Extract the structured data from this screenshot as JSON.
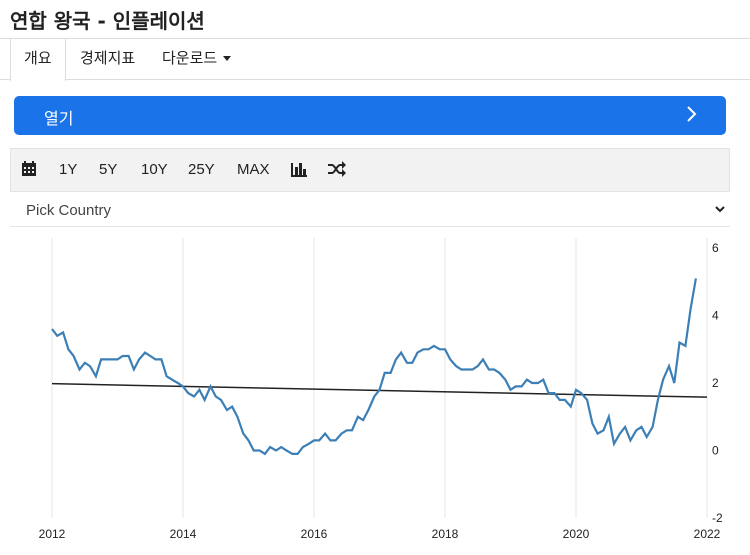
{
  "page": {
    "title": "연합 왕국 - 인플레이션"
  },
  "tabs": [
    {
      "label": "개요",
      "active": true
    },
    {
      "label": "경제지표",
      "active": false
    },
    {
      "label": "다운로드",
      "active": false,
      "dropdown": true
    }
  ],
  "open_button": {
    "label": "열기",
    "icon": "chevron-right-icon"
  },
  "toolbar": {
    "calendar_icon": "calendar-icon",
    "ranges": [
      "1Y",
      "5Y",
      "10Y",
      "25Y",
      "MAX"
    ],
    "bar_icon": "bar-chart-icon",
    "shuffle_icon": "shuffle-icon"
  },
  "country_select": {
    "value": "Pick Country",
    "icon": "chevron-down-icon"
  },
  "colors": {
    "accent": "#1a73e8",
    "series": "#3b7fb6",
    "trend": "#222222"
  },
  "chart_data": {
    "type": "line",
    "title": "",
    "xlabel": "",
    "ylabel": "",
    "xlim": [
      2012,
      2022
    ],
    "ylim": [
      -2,
      6
    ],
    "x_ticks": [
      "2012",
      "2014",
      "2016",
      "2018",
      "2020",
      "2022"
    ],
    "y_ticks": [
      "-2",
      "0",
      "2",
      "4",
      "6"
    ],
    "y_axis_side": "right",
    "grid": "vertical",
    "series": [
      {
        "x": [
          2012.0,
          2012.08,
          2012.17,
          2012.25,
          2012.33,
          2012.42,
          2012.5,
          2012.58,
          2012.67,
          2012.75,
          2012.83,
          2012.92,
          2013.0,
          2013.08,
          2013.17,
          2013.25,
          2013.33,
          2013.42,
          2013.5,
          2013.58,
          2013.67,
          2013.75,
          2013.83,
          2013.92,
          2014.0,
          2014.08,
          2014.17,
          2014.25,
          2014.33,
          2014.42,
          2014.5,
          2014.58,
          2014.67,
          2014.75,
          2014.83,
          2014.92,
          2015.0,
          2015.08,
          2015.17,
          2015.25,
          2015.33,
          2015.42,
          2015.5,
          2015.58,
          2015.67,
          2015.75,
          2015.83,
          2015.92,
          2016.0,
          2016.08,
          2016.17,
          2016.25,
          2016.33,
          2016.42,
          2016.5,
          2016.58,
          2016.67,
          2016.75,
          2016.83,
          2016.92,
          2017.0,
          2017.08,
          2017.17,
          2017.25,
          2017.33,
          2017.42,
          2017.5,
          2017.58,
          2017.67,
          2017.75,
          2017.83,
          2017.92,
          2018.0,
          2018.08,
          2018.17,
          2018.25,
          2018.33,
          2018.42,
          2018.5,
          2018.58,
          2018.67,
          2018.75,
          2018.83,
          2018.92,
          2019.0,
          2019.08,
          2019.17,
          2019.25,
          2019.33,
          2019.42,
          2019.5,
          2019.58,
          2019.67,
          2019.75,
          2019.83,
          2019.92,
          2020.0,
          2020.08,
          2020.17,
          2020.25,
          2020.33,
          2020.42,
          2020.5,
          2020.58,
          2020.67,
          2020.75,
          2020.83,
          2020.92,
          2021.0,
          2021.08,
          2021.17,
          2021.25,
          2021.33,
          2021.42,
          2021.5,
          2021.58,
          2021.67,
          2021.75,
          2021.83
        ],
        "values": [
          3.6,
          3.4,
          3.5,
          3.0,
          2.8,
          2.4,
          2.6,
          2.5,
          2.2,
          2.7,
          2.7,
          2.7,
          2.7,
          2.8,
          2.8,
          2.4,
          2.7,
          2.9,
          2.8,
          2.7,
          2.7,
          2.2,
          2.1,
          2.0,
          1.9,
          1.7,
          1.6,
          1.8,
          1.5,
          1.9,
          1.6,
          1.5,
          1.2,
          1.3,
          1.0,
          0.5,
          0.3,
          0.0,
          0.0,
          -0.1,
          0.1,
          0.0,
          0.1,
          0.0,
          -0.1,
          -0.1,
          0.1,
          0.2,
          0.3,
          0.3,
          0.5,
          0.3,
          0.3,
          0.5,
          0.6,
          0.6,
          1.0,
          0.9,
          1.2,
          1.6,
          1.8,
          2.3,
          2.3,
          2.7,
          2.9,
          2.6,
          2.6,
          2.9,
          3.0,
          3.0,
          3.1,
          3.0,
          3.0,
          2.7,
          2.5,
          2.4,
          2.4,
          2.4,
          2.5,
          2.7,
          2.4,
          2.4,
          2.3,
          2.1,
          1.8,
          1.9,
          1.9,
          2.1,
          2.0,
          2.0,
          2.1,
          1.7,
          1.7,
          1.5,
          1.5,
          1.3,
          1.8,
          1.7,
          1.5,
          0.8,
          0.5,
          0.6,
          1.0,
          0.2,
          0.5,
          0.7,
          0.3,
          0.6,
          0.7,
          0.4,
          0.7,
          1.5,
          2.1,
          2.5,
          2.0,
          3.2,
          3.1,
          4.2,
          5.1
        ]
      }
    ],
    "trendline": {
      "x": [
        2012,
        2022
      ],
      "values": [
        1.98,
        1.58
      ]
    }
  }
}
